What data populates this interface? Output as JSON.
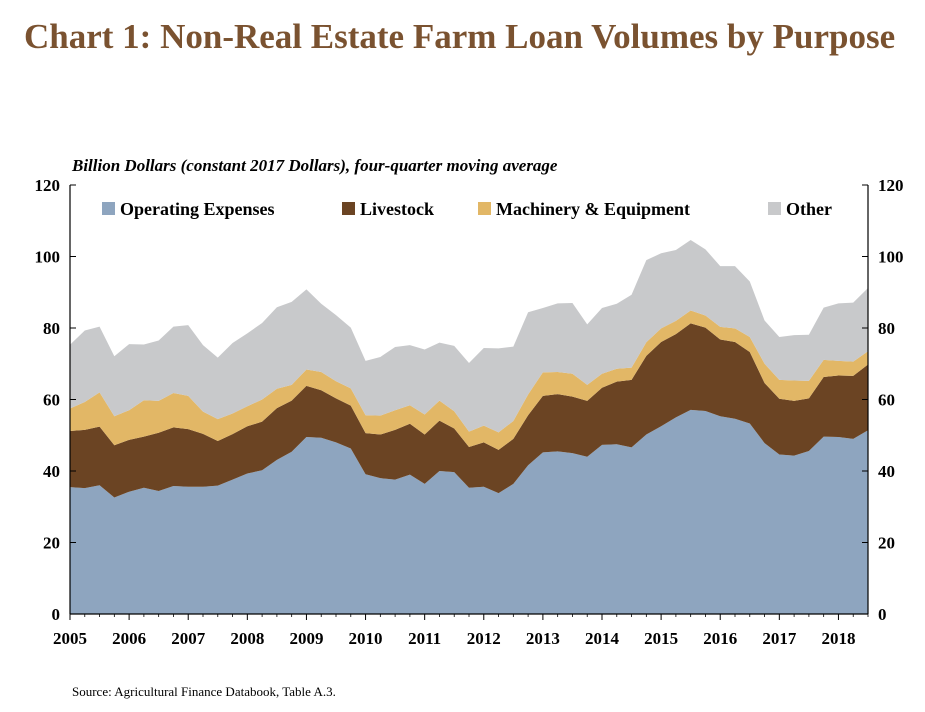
{
  "title": "Chart 1: Non-Real Estate Farm Loan Volumes by Purpose",
  "subtitle": "Billion Dollars (constant 2017 Dollars), four-quarter moving average",
  "source": "Source: Agricultural Finance Databook, Table A.3.",
  "colors": {
    "operating": "#8ea5bf",
    "livestock": "#6b4423",
    "machinery": "#e2b766",
    "other": "#c8c9cb"
  },
  "chart_data": {
    "type": "area",
    "stacked": true,
    "ylim": [
      0,
      120
    ],
    "y_ticks": [
      0,
      20,
      40,
      60,
      80,
      100,
      120
    ],
    "x_range": [
      2005,
      2018.5
    ],
    "x_ticks": [
      "2005",
      "2006",
      "2007",
      "2008",
      "2009",
      "2010",
      "2011",
      "2012",
      "2013",
      "2014",
      "2015",
      "2016",
      "2017",
      "2018"
    ],
    "legend_position": "top",
    "x": [
      2005.0,
      2005.25,
      2005.5,
      2005.75,
      2006.0,
      2006.25,
      2006.5,
      2006.75,
      2007.0,
      2007.25,
      2007.5,
      2007.75,
      2008.0,
      2008.25,
      2008.5,
      2008.75,
      2009.0,
      2009.25,
      2009.5,
      2009.75,
      2010.0,
      2010.25,
      2010.5,
      2010.75,
      2011.0,
      2011.25,
      2011.5,
      2011.75,
      2012.0,
      2012.25,
      2012.5,
      2012.75,
      2013.0,
      2013.25,
      2013.5,
      2013.75,
      2014.0,
      2014.25,
      2014.5,
      2014.75,
      2015.0,
      2015.25,
      2015.5,
      2015.75,
      2016.0,
      2016.25,
      2016.5,
      2016.75,
      2017.0,
      2017.25,
      2017.5,
      2017.75,
      2018.0,
      2018.25,
      2018.5
    ],
    "series": [
      {
        "name": "Operating Expenses",
        "color_key": "operating",
        "values": [
          35.5,
          35.2,
          36,
          32.6,
          34.2,
          35.3,
          34.4,
          35.8,
          35.6,
          35.6,
          35.9,
          37.6,
          39.3,
          40.2,
          43.1,
          45.4,
          49.5,
          49.3,
          48,
          46.3,
          39.1,
          38,
          37.6,
          39,
          36.4,
          40,
          39.7,
          35.3,
          35.6,
          33.8,
          36.4,
          41.6,
          45.2,
          45.5,
          45,
          44,
          47.3,
          47.5,
          46.6,
          50.2,
          52.5,
          55,
          57.1,
          56.8,
          55.3,
          54.6,
          53.3,
          47.8,
          44.6,
          44.3,
          45.6,
          49.6,
          49.5,
          49,
          51.4
        ]
      },
      {
        "name": "Livestock",
        "color_key": "livestock",
        "values": [
          15.7,
          16.3,
          16.4,
          14.6,
          14.5,
          14.3,
          16.3,
          16.4,
          16.1,
          14.8,
          12.5,
          12.7,
          13.2,
          13.6,
          14.5,
          14.3,
          14.3,
          13.3,
          12.3,
          12,
          11.5,
          12.2,
          13.9,
          14.2,
          13.8,
          14.1,
          12.2,
          11.4,
          12.4,
          12.1,
          12.6,
          14,
          15.8,
          16,
          15.8,
          15.6,
          16,
          17.5,
          18.9,
          22,
          23.6,
          23.3,
          24.2,
          23.3,
          21.5,
          21.5,
          20,
          16.8,
          15.6,
          15.3,
          14.7,
          16.7,
          17.2,
          17.6,
          18.4
        ]
      },
      {
        "name": "Machinery & Equipment",
        "color_key": "machinery",
        "values": [
          6.3,
          7.8,
          9.6,
          8.1,
          8.3,
          10.2,
          8.9,
          9.6,
          9.3,
          6.2,
          6.1,
          5.8,
          5.6,
          6.2,
          5.4,
          4.4,
          4.6,
          5.1,
          4.8,
          4.8,
          5,
          5.3,
          5.5,
          5.2,
          5.6,
          5.6,
          4.8,
          4.3,
          4.7,
          4.9,
          5,
          5.8,
          6.6,
          6.2,
          6.4,
          4.5,
          3.9,
          3.6,
          3.4,
          3.8,
          3.8,
          3.7,
          3.6,
          3.4,
          3.5,
          3.8,
          4.2,
          5.4,
          5.3,
          5.7,
          4.9,
          4.8,
          4.1,
          4,
          3.7
        ]
      },
      {
        "name": "Other",
        "color_key": "other",
        "values": [
          17.8,
          20,
          18.4,
          16.8,
          18.5,
          15.6,
          16.9,
          18.6,
          19.8,
          18.6,
          17.2,
          19.7,
          20.4,
          21.4,
          22.8,
          23.2,
          22.4,
          19.1,
          18.5,
          17,
          15.2,
          16.4,
          17.7,
          16.8,
          18.2,
          16.2,
          18.3,
          19.2,
          21.7,
          23.5,
          20.8,
          23,
          18,
          19.2,
          19.8,
          16.9,
          18.4,
          18.2,
          20.4,
          23,
          21,
          19.8,
          19.7,
          18.5,
          17,
          17.4,
          15.5,
          12.1,
          12,
          12.7,
          12.9,
          14.6,
          16.1,
          16.5,
          17.7
        ]
      }
    ]
  }
}
